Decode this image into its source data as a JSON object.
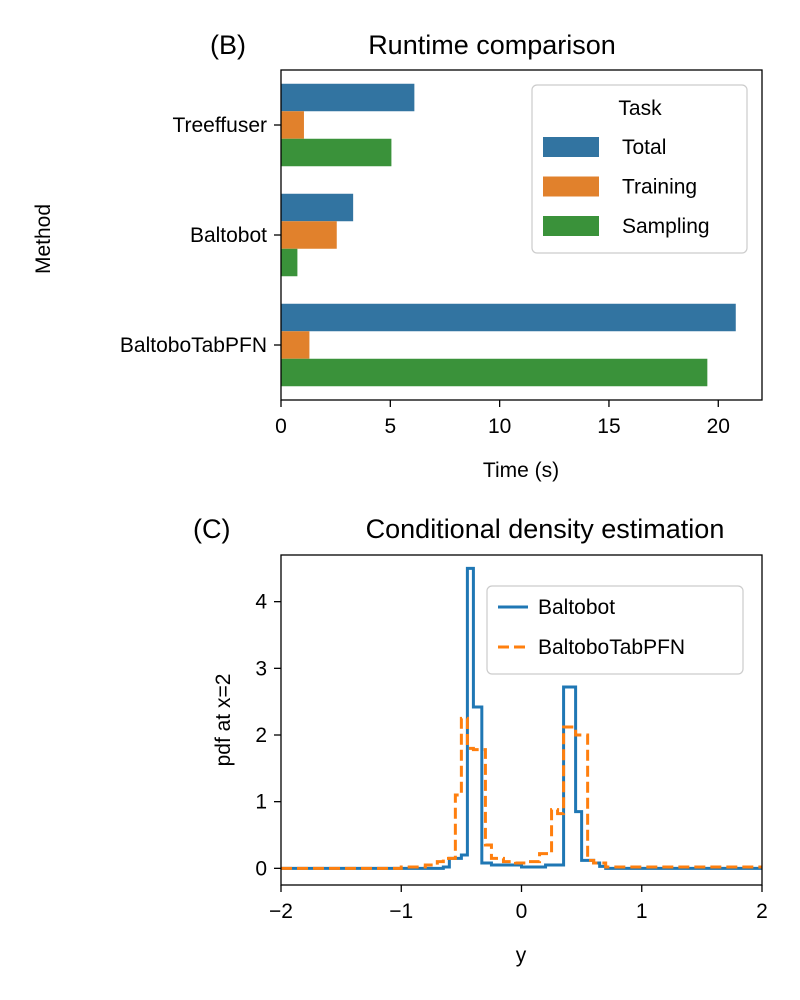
{
  "chart_data": [
    {
      "type": "bar",
      "orientation": "horizontal",
      "panel_label": "(B)",
      "title": "Runtime comparison",
      "xlabel": "Time (s)",
      "ylabel": "Method",
      "xlim": [
        0,
        22
      ],
      "xticks": [
        "0",
        "5",
        "10",
        "15",
        "20"
      ],
      "categories": [
        "Treeffuser",
        "Baltobot",
        "BaltoboTabPFN"
      ],
      "legend_title": "Task",
      "legend_position": "top-right",
      "grid": false,
      "series": [
        {
          "name": "Total",
          "color": "#3274a1",
          "values": [
            6.1,
            3.3,
            20.8
          ]
        },
        {
          "name": "Training",
          "color": "#e1812c",
          "values": [
            1.05,
            2.55,
            1.3
          ]
        },
        {
          "name": "Sampling",
          "color": "#3a923a",
          "values": [
            5.05,
            0.75,
            19.5
          ]
        }
      ]
    },
    {
      "type": "line",
      "step": true,
      "panel_label": "(C)",
      "title": "Conditional density estimation",
      "xlabel": "y",
      "ylabel": "pdf at x=2",
      "xlim": [
        -2,
        2
      ],
      "ylim": [
        -0.25,
        4.7
      ],
      "xticks": [
        "−2",
        "−1",
        "0",
        "1",
        "2"
      ],
      "yticks": [
        "0",
        "1",
        "2",
        "3",
        "4"
      ],
      "legend_position": "top-right",
      "grid": false,
      "series": [
        {
          "name": "Baltobot",
          "color": "#1f77b4",
          "dash": "solid",
          "x": [
            -2,
            -0.65,
            -0.6,
            -0.5,
            -0.45,
            -0.4,
            -0.33,
            -0.25,
            -0.1,
            0,
            0.1,
            0.2,
            0.3,
            0.35,
            0.45,
            0.5,
            0.55,
            0.6,
            0.65,
            0.7,
            2
          ],
          "y": [
            0,
            0.02,
            0.15,
            0.2,
            4.5,
            2.42,
            0.08,
            0.05,
            0.05,
            0.02,
            0.02,
            0.05,
            0.05,
            2.72,
            0.85,
            0.12,
            0.12,
            0.08,
            0.03,
            0,
            0
          ]
        },
        {
          "name": "BaltoboTabPFN",
          "color": "#ff7f0e",
          "dash": "dashed",
          "x": [
            -2,
            -1,
            -0.8,
            -0.7,
            -0.65,
            -0.55,
            -0.5,
            -0.45,
            -0.4,
            -0.3,
            -0.25,
            -0.15,
            -0.05,
            0.05,
            0.15,
            0.25,
            0.3,
            0.35,
            0.45,
            0.55,
            0.6,
            0.7,
            2
          ],
          "y": [
            0,
            0.02,
            0.05,
            0.1,
            0.15,
            1.1,
            2.25,
            1.8,
            1.78,
            0.35,
            0.15,
            0.1,
            0.08,
            0.1,
            0.22,
            0.88,
            0.82,
            2.12,
            2.0,
            0.12,
            0.08,
            0.02,
            0.02
          ]
        }
      ]
    }
  ]
}
